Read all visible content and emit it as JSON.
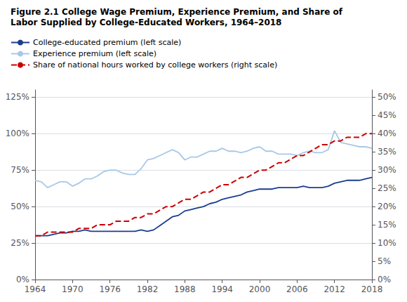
{
  "chart_data": {
    "type": "line",
    "title": "Figure 2.1 College Wage Premium, Experience Premium, and Share of",
    "subtitle": "Labor Supplied by College-Educated Workers, 1964–2018",
    "x": [
      1964,
      1965,
      1966,
      1967,
      1968,
      1969,
      1970,
      1971,
      1972,
      1973,
      1974,
      1975,
      1976,
      1977,
      1978,
      1979,
      1980,
      1981,
      1982,
      1983,
      1984,
      1985,
      1986,
      1987,
      1988,
      1989,
      1990,
      1991,
      1992,
      1993,
      1994,
      1995,
      1996,
      1997,
      1998,
      1999,
      2000,
      2001,
      2002,
      2003,
      2004,
      2005,
      2006,
      2007,
      2008,
      2009,
      2010,
      2011,
      2012,
      2013,
      2014,
      2015,
      2016,
      2017,
      2018
    ],
    "series": [
      {
        "name": "College-educated premium (left scale)",
        "color": "#1a3d8f",
        "line_style": "solid",
        "values": [
          0.3,
          0.3,
          0.3,
          0.31,
          0.32,
          0.32,
          0.33,
          0.33,
          0.34,
          0.33,
          0.33,
          0.33,
          0.33,
          0.33,
          0.33,
          0.33,
          0.33,
          0.34,
          0.33,
          0.34,
          0.37,
          0.4,
          0.43,
          0.44,
          0.47,
          0.48,
          0.49,
          0.5,
          0.52,
          0.53,
          0.55,
          0.56,
          0.57,
          0.58,
          0.6,
          0.61,
          0.62,
          0.62,
          0.62,
          0.63,
          0.63,
          0.63,
          0.63,
          0.64,
          0.63,
          0.63,
          0.63,
          0.64,
          0.66,
          0.67,
          0.68,
          0.68,
          0.68,
          0.69,
          0.7
        ]
      },
      {
        "name": "Experience premium (left scale)",
        "color": "#a8c8e8",
        "line_style": "solid",
        "values": [
          0.68,
          0.67,
          0.63,
          0.65,
          0.67,
          0.67,
          0.64,
          0.66,
          0.69,
          0.69,
          0.71,
          0.74,
          0.75,
          0.75,
          0.73,
          0.72,
          0.72,
          0.76,
          0.82,
          0.83,
          0.85,
          0.87,
          0.89,
          0.87,
          0.82,
          0.84,
          0.84,
          0.86,
          0.88,
          0.88,
          0.9,
          0.88,
          0.88,
          0.87,
          0.88,
          0.9,
          0.91,
          0.88,
          0.88,
          0.86,
          0.86,
          0.86,
          0.85,
          0.87,
          0.88,
          0.87,
          0.87,
          0.89,
          1.02,
          0.94,
          0.93,
          0.92,
          0.91,
          0.91,
          0.9
        ]
      },
      {
        "name": "Share of national hours worked by college workers (right scale)",
        "color": "#cc0000",
        "line_style": "dashed",
        "axis": "y2",
        "values": [
          0.12,
          0.12,
          0.13,
          0.13,
          0.13,
          0.13,
          0.13,
          0.14,
          0.14,
          0.14,
          0.15,
          0.15,
          0.15,
          0.16,
          0.16,
          0.16,
          0.17,
          0.17,
          0.18,
          0.18,
          0.19,
          0.2,
          0.2,
          0.21,
          0.22,
          0.22,
          0.23,
          0.24,
          0.24,
          0.25,
          0.26,
          0.26,
          0.27,
          0.28,
          0.28,
          0.29,
          0.3,
          0.3,
          0.31,
          0.32,
          0.32,
          0.33,
          0.34,
          0.34,
          0.35,
          0.36,
          0.37,
          0.37,
          0.38,
          0.38,
          0.39,
          0.39,
          0.39,
          0.4,
          0.4
        ]
      }
    ],
    "xlim": [
      1964,
      2018
    ],
    "xticks": [
      1964,
      1970,
      1976,
      1982,
      1988,
      1994,
      2000,
      2006,
      2012,
      2018
    ],
    "ylim": [
      0.0,
      1.3
    ],
    "yticks": [
      {
        "value": 0.0,
        "label": "0%"
      },
      {
        "value": 0.25,
        "label": "25%"
      },
      {
        "value": 0.5,
        "label": "50%"
      },
      {
        "value": 0.75,
        "label": "75%"
      },
      {
        "value": 1.0,
        "label": "100%"
      },
      {
        "value": 1.25,
        "label": "125%"
      }
    ],
    "y2lim": [
      0.0,
      0.52
    ],
    "y2ticks": [
      {
        "value": 0.0,
        "label": "0%"
      },
      {
        "value": 0.05,
        "label": "5%"
      },
      {
        "value": 0.1,
        "label": "10%"
      },
      {
        "value": 0.15,
        "label": "15%"
      },
      {
        "value": 0.2,
        "label": "20%"
      },
      {
        "value": 0.25,
        "label": "25%"
      },
      {
        "value": 0.3,
        "label": "30%"
      },
      {
        "value": 0.35,
        "label": "35%"
      },
      {
        "value": 0.4,
        "label": "40%"
      },
      {
        "value": 0.45,
        "label": "45%"
      },
      {
        "value": 0.5,
        "label": "50%"
      }
    ],
    "grid": true,
    "legend": "upper left"
  }
}
